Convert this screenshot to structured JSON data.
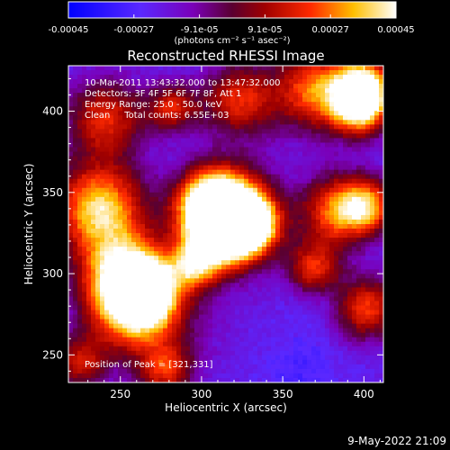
{
  "colorbar": {
    "ticks": [
      "-0.00045",
      "-0.00027",
      "-9.1e-05",
      "9.1e-05",
      "0.00027",
      "0.00045"
    ],
    "unit_label": "(photons cm⁻² s⁻¹ asec⁻²)",
    "range": [
      -0.00045,
      0.00045
    ]
  },
  "chart_data": {
    "type": "heatmap",
    "title": "Reconstructed RHESSI Image",
    "xlabel": "Heliocentric X (arcsec)",
    "ylabel": "Heliocentric Y (arcsec)",
    "xlim": [
      218,
      412
    ],
    "ylim": [
      233,
      428
    ],
    "xticks": [
      "250",
      "300",
      "350",
      "400"
    ],
    "yticks": [
      "250",
      "300",
      "350",
      "400"
    ],
    "annotations": [
      "10-Mar-2011 13:43:32.000 to 13:47:32.000",
      "Detectors: 3F 4F 5F 6F 7F 8F, Att 1",
      "Energy Range: 25.0 - 50.0 keV",
      "Clean     Total counts: 6.55E+03"
    ],
    "peak_label": "Position of Peak = [321,331]",
    "peak": [
      321,
      331
    ],
    "bright_regions": [
      {
        "x": 237,
        "y": 340,
        "sigma": 20,
        "value": 0.00042
      },
      {
        "x": 251,
        "y": 299,
        "sigma": 18,
        "value": 0.0003
      },
      {
        "x": 259,
        "y": 278,
        "sigma": 20,
        "value": 0.00036
      },
      {
        "x": 267,
        "y": 290,
        "sigma": 14,
        "value": 0.0003
      },
      {
        "x": 241,
        "y": 396,
        "sigma": 17,
        "value": 0.00022
      },
      {
        "x": 305,
        "y": 345,
        "sigma": 14,
        "value": 0.00032
      },
      {
        "x": 318,
        "y": 338,
        "sigma": 19,
        "value": 0.00045
      },
      {
        "x": 330,
        "y": 330,
        "sigma": 12,
        "value": 0.0004
      },
      {
        "x": 310,
        "y": 322,
        "sigma": 16,
        "value": 0.00034
      },
      {
        "x": 296,
        "y": 305,
        "sigma": 10,
        "value": 0.0002
      },
      {
        "x": 323,
        "y": 407,
        "sigma": 16,
        "value": 0.00022
      },
      {
        "x": 371,
        "y": 413,
        "sigma": 18,
        "value": 0.00032
      },
      {
        "x": 398,
        "y": 402,
        "sigma": 12,
        "value": 0.0004
      },
      {
        "x": 401,
        "y": 417,
        "sigma": 12,
        "value": 0.00034
      },
      {
        "x": 383,
        "y": 338,
        "sigma": 16,
        "value": 0.00028
      },
      {
        "x": 402,
        "y": 342,
        "sigma": 12,
        "value": 0.00026
      },
      {
        "x": 369,
        "y": 302,
        "sigma": 12,
        "value": 0.0003
      },
      {
        "x": 401,
        "y": 279,
        "sigma": 14,
        "value": 0.00026
      },
      {
        "x": 225,
        "y": 245,
        "sigma": 12,
        "value": 0.00016
      },
      {
        "x": 278,
        "y": 240,
        "sigma": 12,
        "value": 0.0002
      },
      {
        "x": 282,
        "y": 402,
        "sigma": 11,
        "value": 0.00018
      }
    ],
    "dark_regions": [
      {
        "x": 372,
        "y": 294,
        "sigma": 16,
        "value": -0.0003
      },
      {
        "x": 362,
        "y": 240,
        "sigma": 14,
        "value": -0.00025
      },
      {
        "x": 330,
        "y": 372,
        "sigma": 18,
        "value": -0.00018
      },
      {
        "x": 300,
        "y": 265,
        "sigma": 18,
        "value": -0.00012
      },
      {
        "x": 345,
        "y": 282,
        "sigma": 14,
        "value": -0.00016
      }
    ]
  },
  "footer": {
    "timestamp": "9-May-2022 21:09"
  }
}
